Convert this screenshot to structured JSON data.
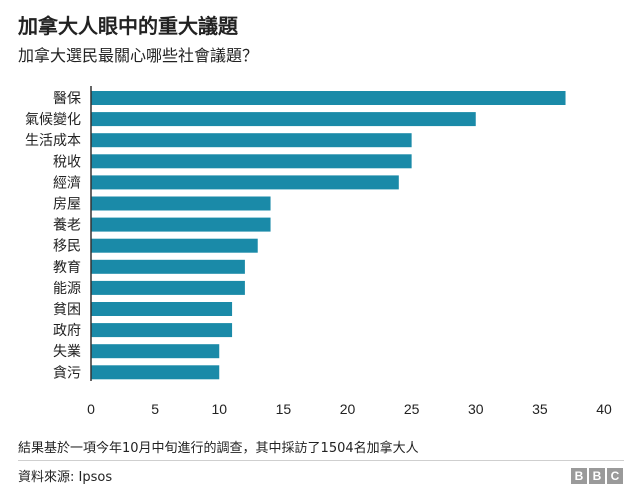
{
  "header": {
    "title": "加拿大人眼中的重大議題",
    "subtitle": "加拿大選民最關心哪些社會議題？"
  },
  "footer": {
    "note": "結果基於一項今年10月中旬進行的調查，其中採訪了1504名加拿大人",
    "source": "資料來源: Ipsos",
    "logo_letters": [
      "B",
      "B",
      "C"
    ]
  },
  "colors": {
    "bar": "#1a8aa8",
    "axis": "#333333",
    "text": "#222222"
  },
  "chart_data": {
    "type": "bar",
    "orientation": "horizontal",
    "title": "加拿大人眼中的重大議題",
    "subtitle": "加拿大選民最關心哪些社會議題？",
    "categories": [
      "醫保",
      "氣候變化",
      "生活成本",
      "稅收",
      "經濟",
      "房屋",
      "養老",
      "移民",
      "教育",
      "能源",
      "貧困",
      "政府",
      "失業",
      "貪污"
    ],
    "values": [
      37,
      30,
      25,
      25,
      24,
      14,
      14,
      13,
      12,
      12,
      11,
      11,
      10,
      10
    ],
    "xlim": [
      0,
      40
    ],
    "xticks": [
      0,
      5,
      10,
      15,
      20,
      25,
      30,
      35,
      40
    ],
    "xlabel": "",
    "ylabel": "",
    "grid": false,
    "legend": "none"
  }
}
